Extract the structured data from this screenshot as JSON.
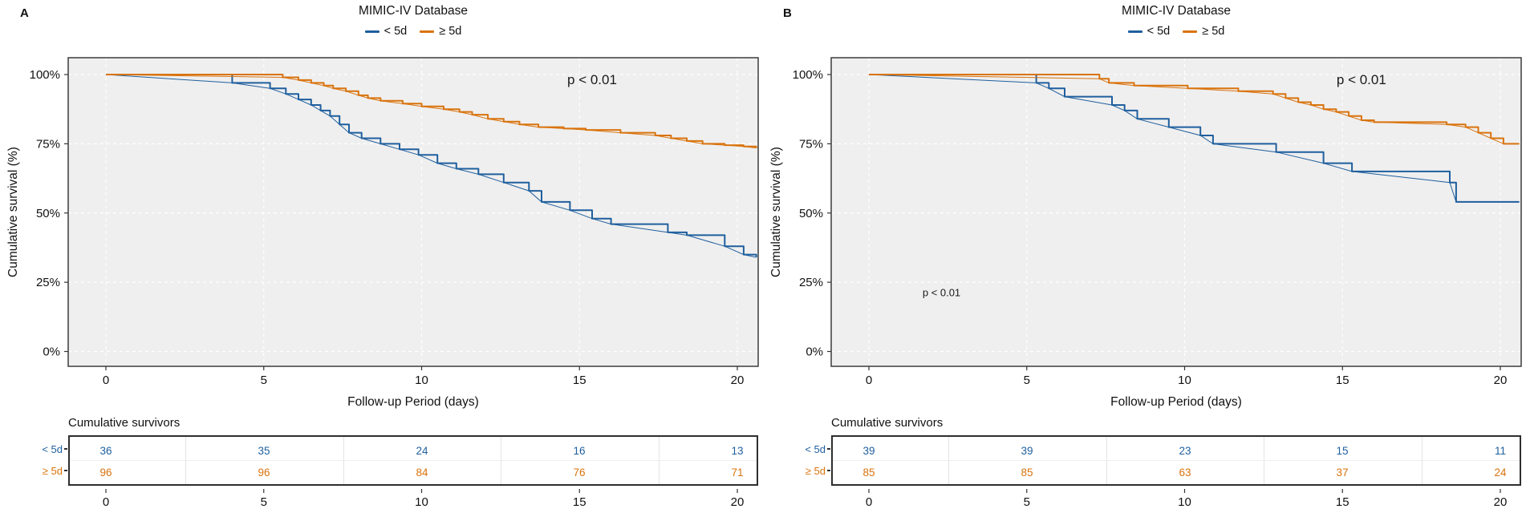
{
  "figure": {
    "panels": [
      {
        "label": "A",
        "title": "MIMIC-IV Database",
        "y_axis_title": "Cumulative survival (%)",
        "x_axis_title": "Follow-up Period (days)",
        "risk_table_title": "Cumulative survivors"
      },
      {
        "label": "B",
        "title": "MIMIC-IV Database",
        "y_axis_title": "Cumulative survival (%)",
        "x_axis_title": "Follow-up Period (days)",
        "risk_table_title": "Cumulative survivors"
      }
    ],
    "colors": {
      "group_lt5d": "#1F5F9E",
      "group_ge5d": "#D9730D",
      "plot_background": "#EFEFEF"
    }
  },
  "chart_data": [
    {
      "type": "line",
      "subtype": "kaplan_meier_step",
      "panel": "A",
      "title": "MIMIC-IV Database",
      "xlabel": "Follow-up Period (days)",
      "ylabel": "Cumulative survival (%)",
      "xlim": [
        0,
        20.7
      ],
      "ylim": [
        0,
        100
      ],
      "x_ticks": [
        0,
        5,
        10,
        15,
        20
      ],
      "y_ticks": [
        0,
        25,
        50,
        75,
        100
      ],
      "grid": true,
      "legend_position": "top-center",
      "annotations": [
        {
          "text": "p < 0.01",
          "x": 15.4,
          "y": 96.5,
          "size": 17
        }
      ],
      "series": [
        {
          "name": "< 5d",
          "color": "#1F5F9E",
          "points": [
            [
              0,
              100
            ],
            [
              4.0,
              97
            ],
            [
              5.2,
              95
            ],
            [
              5.7,
              93
            ],
            [
              6.1,
              91
            ],
            [
              6.5,
              89
            ],
            [
              6.8,
              87
            ],
            [
              7.1,
              85
            ],
            [
              7.4,
              82
            ],
            [
              7.7,
              79
            ],
            [
              8.1,
              77
            ],
            [
              8.7,
              75
            ],
            [
              9.3,
              73
            ],
            [
              9.9,
              71
            ],
            [
              10.5,
              68
            ],
            [
              11.1,
              66
            ],
            [
              11.8,
              64
            ],
            [
              12.6,
              61
            ],
            [
              13.4,
              58
            ],
            [
              13.8,
              54
            ],
            [
              14.7,
              51
            ],
            [
              15.4,
              48
            ],
            [
              16.0,
              46
            ],
            [
              17.8,
              43
            ],
            [
              18.4,
              42
            ],
            [
              19.6,
              38
            ],
            [
              20.2,
              35
            ],
            [
              20.6,
              34
            ]
          ]
        },
        {
          "name": "≥ 5d",
          "color": "#D9730D",
          "points": [
            [
              0,
              100
            ],
            [
              5.6,
              99
            ],
            [
              6.1,
              98
            ],
            [
              6.5,
              97
            ],
            [
              6.9,
              96
            ],
            [
              7.2,
              95
            ],
            [
              7.6,
              94
            ],
            [
              8.0,
              92.5
            ],
            [
              8.3,
              91.5
            ],
            [
              8.7,
              90.5
            ],
            [
              9.4,
              89.5
            ],
            [
              10.0,
              88.5
            ],
            [
              10.7,
              87.5
            ],
            [
              11.2,
              86.5
            ],
            [
              11.6,
              85.5
            ],
            [
              12.1,
              84
            ],
            [
              12.6,
              83
            ],
            [
              13.1,
              82
            ],
            [
              13.7,
              81
            ],
            [
              14.5,
              80.5
            ],
            [
              15.2,
              80
            ],
            [
              16.3,
              79
            ],
            [
              17.4,
              78
            ],
            [
              17.9,
              77
            ],
            [
              18.4,
              76
            ],
            [
              18.9,
              75
            ],
            [
              19.6,
              74.5
            ],
            [
              20.2,
              74
            ],
            [
              20.6,
              73.5
            ]
          ]
        }
      ],
      "cumulative_survivors": {
        "title": "Cumulative survivors",
        "time_points": [
          0,
          5,
          10,
          15,
          20
        ],
        "rows": [
          {
            "label": "< 5d",
            "color": "#1F5F9E",
            "values": [
              36,
              35,
              24,
              16,
              13
            ]
          },
          {
            "label": "≥ 5d",
            "color": "#D9730D",
            "values": [
              96,
              96,
              84,
              76,
              71
            ]
          }
        ]
      }
    },
    {
      "type": "line",
      "subtype": "kaplan_meier_step",
      "panel": "B",
      "title": "MIMIC-IV Database",
      "xlabel": "Follow-up Period (days)",
      "ylabel": "Cumulative survival (%)",
      "xlim": [
        0,
        20.7
      ],
      "ylim": [
        0,
        100
      ],
      "x_ticks": [
        0,
        5,
        10,
        15,
        20
      ],
      "y_ticks": [
        0,
        25,
        50,
        75,
        100
      ],
      "grid": true,
      "legend_position": "top-center",
      "annotations": [
        {
          "text": "p < 0.01",
          "x": 15.6,
          "y": 96.5,
          "size": 17
        },
        {
          "text": "p < 0.01",
          "x": 2.3,
          "y": 20,
          "size": 13
        }
      ],
      "series": [
        {
          "name": "< 5d",
          "color": "#1F5F9E",
          "points": [
            [
              0,
              100
            ],
            [
              5.3,
              97
            ],
            [
              5.7,
              95
            ],
            [
              6.2,
              92
            ],
            [
              7.7,
              89
            ],
            [
              8.1,
              87
            ],
            [
              8.5,
              84
            ],
            [
              9.5,
              81
            ],
            [
              10.5,
              78
            ],
            [
              10.9,
              75
            ],
            [
              12.9,
              72
            ],
            [
              14.4,
              68
            ],
            [
              15.3,
              65
            ],
            [
              18.4,
              61
            ],
            [
              18.6,
              54
            ],
            [
              20.6,
              54
            ]
          ]
        },
        {
          "name": "≥ 5d",
          "color": "#D9730D",
          "points": [
            [
              0,
              100
            ],
            [
              7.3,
              98.5
            ],
            [
              7.6,
              97
            ],
            [
              8.4,
              96
            ],
            [
              10.1,
              95
            ],
            [
              11.7,
              94
            ],
            [
              12.8,
              93
            ],
            [
              13.2,
              91.5
            ],
            [
              13.6,
              90
            ],
            [
              14.0,
              89
            ],
            [
              14.4,
              87.5
            ],
            [
              14.8,
              86.5
            ],
            [
              15.2,
              85
            ],
            [
              15.6,
              83.5
            ],
            [
              16.0,
              82.8
            ],
            [
              18.3,
              82
            ],
            [
              18.9,
              81
            ],
            [
              19.3,
              79
            ],
            [
              19.7,
              77
            ],
            [
              20.1,
              75
            ],
            [
              20.6,
              75
            ]
          ]
        }
      ],
      "cumulative_survivors": {
        "title": "Cumulative survivors",
        "time_points": [
          0,
          5,
          10,
          15,
          20
        ],
        "rows": [
          {
            "label": "< 5d",
            "color": "#1F5F9E",
            "values": [
              39,
              39,
              23,
              15,
              11
            ]
          },
          {
            "label": "≥ 5d",
            "color": "#D9730D",
            "values": [
              85,
              85,
              63,
              37,
              24
            ]
          }
        ]
      }
    }
  ]
}
